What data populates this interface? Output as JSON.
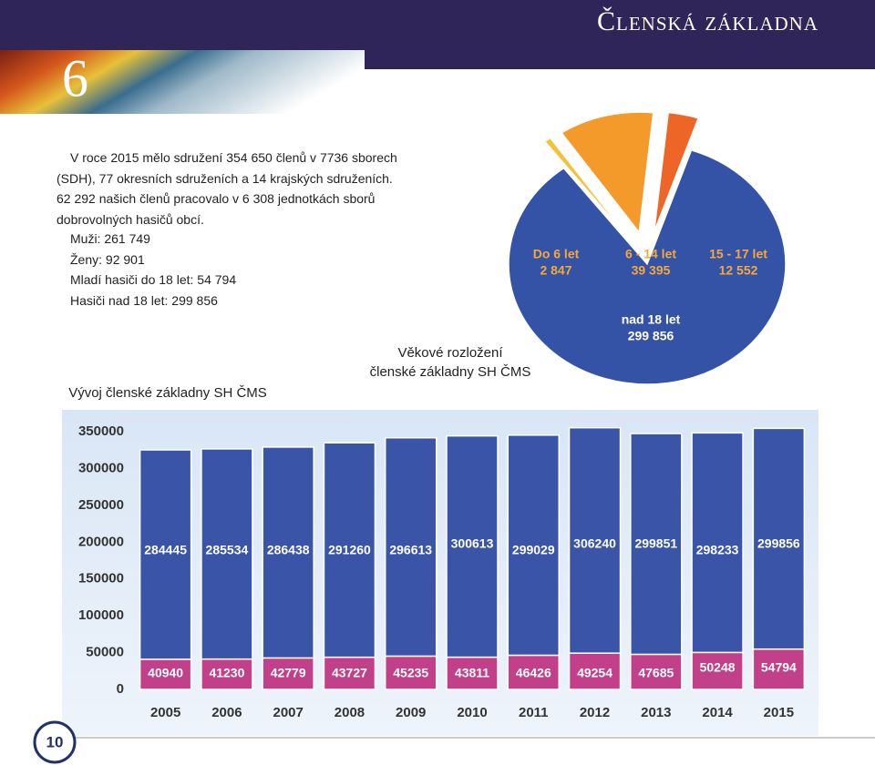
{
  "header": {
    "chapter": "6",
    "title": "Členská základna"
  },
  "intro": {
    "lines": [
      "V roce 2015 mělo sdružení 354 650 členů v 7736 sborech",
      "(SDH), 77 okresních sdruženích a 14 krajských sdruženích.",
      "62 292 našich členů pracovalo v 6 308 jednotkách sborů",
      "dobrovolných hasičů obcí."
    ],
    "stats": [
      "Muži: 261 749",
      "Ženy: 92 901",
      "Mladí hasiči do 18 let: 54 794",
      "Hasiči nad 18 let: 299 856"
    ]
  },
  "chart_data": [
    {
      "type": "pie",
      "title_lines": [
        "Věkové rozložení",
        "členské základny SH ČMS"
      ],
      "categories": [
        "Do 6 let",
        "6 - 14 let",
        "15 - 17 let",
        "nad 18 let"
      ],
      "values": [
        2847,
        39395,
        12552,
        299856
      ],
      "value_labels": [
        "2 847",
        "39 395",
        "12 552",
        "299 856"
      ],
      "colors": [
        "#f3c23c",
        "#f39a2b",
        "#ee6528",
        "#3453a6"
      ]
    },
    {
      "type": "bar",
      "stacked": true,
      "title": "Vývoj členské základny SH ČMS",
      "categories": [
        "2005",
        "2006",
        "2007",
        "2008",
        "2009",
        "2010",
        "2011",
        "2012",
        "2013",
        "2014",
        "2015"
      ],
      "series": [
        {
          "color": "#3a55a8",
          "values": [
            284445,
            285534,
            286438,
            291260,
            296613,
            300613,
            299029,
            306240,
            299851,
            298233,
            299856
          ]
        },
        {
          "color": "#c23f89",
          "values": [
            40940,
            41230,
            42779,
            43727,
            45235,
            43811,
            46426,
            49254,
            47685,
            50248,
            54794
          ]
        }
      ],
      "ylim": [
        0,
        365000
      ],
      "yticks": [
        0,
        50000,
        100000,
        150000,
        200000,
        250000,
        300000,
        350000
      ]
    }
  ],
  "page_number": "10"
}
